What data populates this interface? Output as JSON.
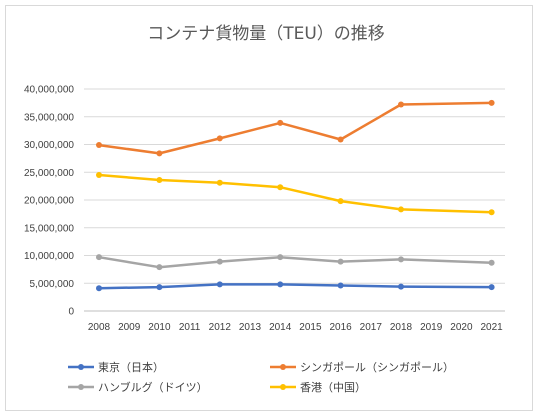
{
  "chart_data": {
    "type": "line",
    "title": "コンテナ貨物量（TEU）の推移",
    "x": [
      "2008",
      "2009",
      "2010",
      "2011",
      "2012",
      "2013",
      "2014",
      "2015",
      "2016",
      "2017",
      "2018",
      "2019",
      "2020",
      "2021"
    ],
    "ylim": [
      0,
      40000000
    ],
    "yticks": [
      "0",
      "5,000,000",
      "10,000,000",
      "15,000,000",
      "20,000,000",
      "25,000,000",
      "30,000,000",
      "35,000,000",
      "40,000,000"
    ],
    "grid": true,
    "legend_position": "bottom",
    "series": [
      {
        "name": "東京（日本）",
        "color": "#4472c4",
        "points": [
          [
            2008,
            4100000
          ],
          [
            2010,
            4300000
          ],
          [
            2012,
            4800000
          ],
          [
            2014,
            4800000
          ],
          [
            2016,
            4600000
          ],
          [
            2018,
            4400000
          ],
          [
            2021,
            4300000
          ]
        ]
      },
      {
        "name": "シンガポール（シンガポール）",
        "color": "#ed7d31",
        "points": [
          [
            2008,
            29900000
          ],
          [
            2010,
            28400000
          ],
          [
            2012,
            31100000
          ],
          [
            2014,
            33900000
          ],
          [
            2016,
            30900000
          ],
          [
            2018,
            37200000
          ],
          [
            2021,
            37500000
          ]
        ]
      },
      {
        "name": "ハンブルグ（ドイツ）",
        "color": "#a5a5a5",
        "points": [
          [
            2008,
            9700000
          ],
          [
            2010,
            7900000
          ],
          [
            2012,
            8900000
          ],
          [
            2014,
            9700000
          ],
          [
            2016,
            8900000
          ],
          [
            2018,
            9300000
          ],
          [
            2021,
            8700000
          ]
        ]
      },
      {
        "name": "香港（中国）",
        "color": "#ffc000",
        "points": [
          [
            2008,
            24500000
          ],
          [
            2010,
            23600000
          ],
          [
            2012,
            23100000
          ],
          [
            2014,
            22300000
          ],
          [
            2016,
            19800000
          ],
          [
            2018,
            18300000
          ],
          [
            2021,
            17800000
          ]
        ]
      }
    ]
  }
}
